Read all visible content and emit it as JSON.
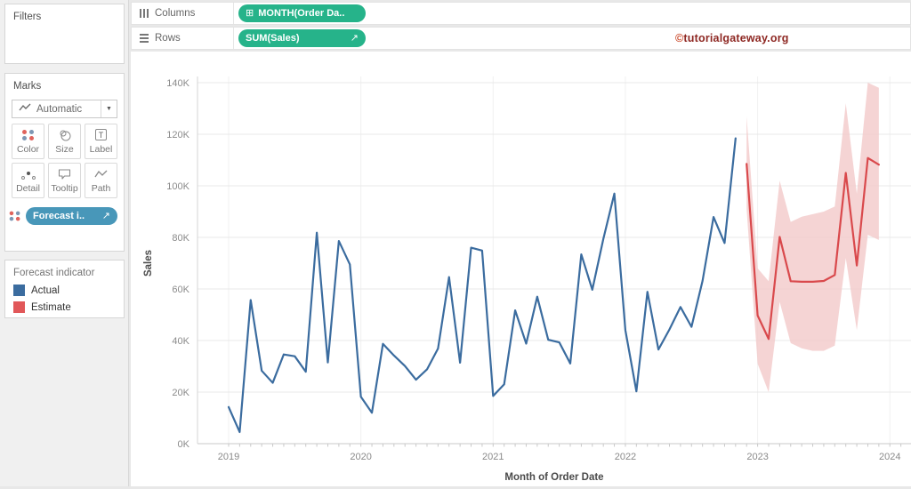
{
  "colors": {
    "pill_green": "#26b38a",
    "pill_blue": "#4897b9",
    "actual_blue": "#3b6c9f",
    "estimate_red": "#d9494c",
    "band_pink": "#f3c9c9"
  },
  "icons": {
    "field_calendar_plus": "⊞",
    "forecast_arrow": "↗",
    "dropdown_caret": "▼"
  },
  "sidebar": {
    "filters": {
      "title": "Filters"
    },
    "marks": {
      "title": "Marks",
      "mark_type": "Automatic",
      "buttons": [
        {
          "label": "Color",
          "icon": "color-dots"
        },
        {
          "label": "Size",
          "icon": "two-circles"
        },
        {
          "label": "Label",
          "icon": "t-box"
        },
        {
          "label": "Detail",
          "icon": "detail-dots"
        },
        {
          "label": "Tooltip",
          "icon": "speech-bubble"
        },
        {
          "label": "Path",
          "icon": "zigzag-line"
        }
      ],
      "pill": {
        "label": "Forecast i.."
      }
    },
    "legend": {
      "title": "Forecast indicator",
      "items": [
        {
          "label": "Actual",
          "color": "#3b6c9f"
        },
        {
          "label": "Estimate",
          "color": "#e15759"
        }
      ]
    }
  },
  "shelves": {
    "columns": {
      "label": "Columns",
      "pill": "MONTH(Order Da.."
    },
    "rows": {
      "label": "Rows",
      "pill": "SUM(Sales)"
    }
  },
  "watermark": {
    "symbol": "©",
    "text": "tutorialgateway.org"
  },
  "chart_data": {
    "type": "line",
    "xlabel": "Month of Order Date",
    "ylabel": "Sales",
    "unit": "K",
    "ylim": [
      0,
      145
    ],
    "y_ticks": [
      "0K",
      "20K",
      "40K",
      "60K",
      "80K",
      "100K",
      "120K",
      "140K"
    ],
    "x_ticks": [
      "2019",
      "2020",
      "2021",
      "2022",
      "2023",
      "2024"
    ],
    "grid": true,
    "legend_position": "left-panel",
    "series": [
      {
        "name": "Actual",
        "color": "#3b6c9f",
        "start_month": "2019-01",
        "values": [
          14.2,
          4.5,
          55.7,
          28.3,
          23.6,
          34.6,
          33.9,
          27.9,
          81.8,
          31.5,
          78.6,
          69.5,
          18.2,
          12.0,
          38.7,
          34.2,
          30.1,
          24.8,
          28.8,
          36.9,
          64.6,
          31.4,
          76.0,
          74.9,
          18.5,
          23.0,
          51.7,
          38.8,
          57.0,
          40.3,
          39.3,
          31.1,
          73.4,
          59.7,
          79.4,
          97.0,
          44.0,
          20.3,
          58.9,
          36.5,
          44.3,
          53.0,
          45.3,
          63.1,
          87.9,
          77.8,
          118.4
        ]
      },
      {
        "name": "Estimate",
        "color": "#d9494c",
        "start_month": "2022-12",
        "values": [
          108.5,
          49.7,
          40.6,
          80.2,
          63.0,
          62.8,
          62.8,
          63.1,
          65.4,
          105.0,
          69.1,
          110.8,
          108.2
        ],
        "band_upper": [
          127,
          68,
          63,
          102,
          86,
          88,
          89,
          90,
          92,
          132,
          97,
          140,
          138
        ],
        "band_lower": [
          91,
          31,
          20,
          55,
          39,
          37,
          36,
          36,
          38,
          72,
          44,
          81,
          79
        ],
        "band_color": "#f3c9c9"
      }
    ]
  }
}
